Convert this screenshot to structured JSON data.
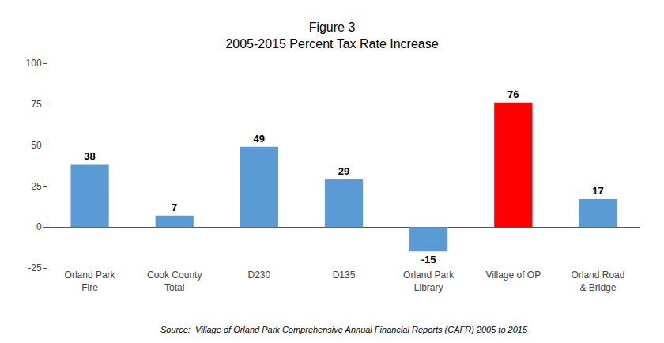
{
  "chart_data": {
    "type": "bar",
    "title": "Figure 3",
    "subtitle": "2005-2015 Percent Tax Rate Increase",
    "categories": [
      "Orland Park\nFire",
      "Cook County\nTotal",
      "D230",
      "D135",
      "Orland Park\nLibrary",
      "Village of OP",
      "Orland Road\n& Bridge"
    ],
    "values": [
      38,
      7,
      49,
      29,
      -15,
      76,
      17
    ],
    "colors": [
      "#5b9bd5",
      "#5b9bd5",
      "#5b9bd5",
      "#5b9bd5",
      "#5b9bd5",
      "#ff0000",
      "#5b9bd5"
    ],
    "ylim": [
      -25,
      100
    ],
    "yticks": [
      -25,
      0,
      25,
      50,
      75,
      100
    ],
    "grid": false,
    "data_labels": true,
    "annotations": [
      "Source:  Village of Orland Park Comprehensive Annual Financial Reports (CAFR) 2005 to 2015"
    ]
  }
}
